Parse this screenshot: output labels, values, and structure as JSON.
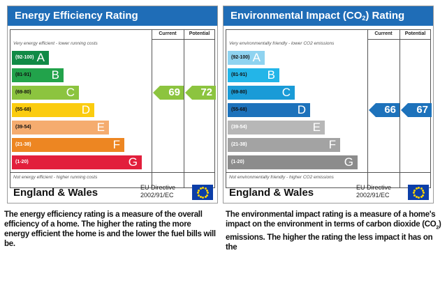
{
  "energy": {
    "title": "Energy Efficiency Rating",
    "col_current": "Current",
    "col_potential": "Potential",
    "top_note": "Very energy efficient - lower running costs",
    "bottom_note": "Not energy efficient - higher running costs",
    "bands": [
      {
        "range": "(92-100)",
        "letter": "A",
        "color": "#118a46",
        "width": 0.27
      },
      {
        "range": "(81-91)",
        "letter": "B",
        "color": "#22a34b",
        "width": 0.38
      },
      {
        "range": "(69-80)",
        "letter": "C",
        "color": "#8cc43f",
        "width": 0.49
      },
      {
        "range": "(55-68)",
        "letter": "D",
        "color": "#fbcc0f",
        "width": 0.6
      },
      {
        "range": "(39-54)",
        "letter": "E",
        "color": "#f5ac6f",
        "width": 0.71
      },
      {
        "range": "(21-38)",
        "letter": "F",
        "color": "#ed8622",
        "width": 0.82
      },
      {
        "range": "(1-20)",
        "letter": "G",
        "color": "#e21f3c",
        "width": 0.95
      }
    ],
    "current": {
      "value": "69",
      "band": 2,
      "color": "#8cc43f"
    },
    "potential": {
      "value": "72",
      "band": 2,
      "color": "#8cc43f"
    },
    "footer": "England & Wales",
    "directive_line1": "EU Directive",
    "directive_line2": "2002/91/EC"
  },
  "environment": {
    "title_pre": "Environmental Impact (CO",
    "title_sub": "2",
    "title_post": ") Rating",
    "col_current": "Current",
    "col_potential": "Potential",
    "top_note": "Very environmentally friendly - lower CO2 emissions",
    "bottom_note": "Not environmentally friendly - higher CO2 emissions",
    "bands": [
      {
        "range": "(92-100)",
        "letter": "A",
        "color": "#8fd3f0",
        "width": 0.27
      },
      {
        "range": "(81-91)",
        "letter": "B",
        "color": "#23b5e8",
        "width": 0.38
      },
      {
        "range": "(69-80)",
        "letter": "C",
        "color": "#1a9bd7",
        "width": 0.49
      },
      {
        "range": "(55-68)",
        "letter": "D",
        "color": "#1d72bb",
        "width": 0.6
      },
      {
        "range": "(39-54)",
        "letter": "E",
        "color": "#b7b7b7",
        "width": 0.71
      },
      {
        "range": "(21-38)",
        "letter": "F",
        "color": "#a3a3a3",
        "width": 0.82
      },
      {
        "range": "(1-20)",
        "letter": "G",
        "color": "#8c8c8c",
        "width": 0.95
      }
    ],
    "current": {
      "value": "66",
      "band": 3,
      "color": "#1d72bb"
    },
    "potential": {
      "value": "67",
      "band": 3,
      "color": "#1d72bb"
    },
    "footer": "England & Wales",
    "directive_line1": "EU Directive",
    "directive_line2": "2002/91/EC"
  },
  "desc_energy": "The energy efficiency rating is a measure of the overall efficiency of a home. The higher the rating the more energy efficient the home is and the lower the fuel bills will be.",
  "desc_env_pre": "The environmental impact rating is a measure of a home's impact on the environment in terms of carbon dioxide (CO",
  "desc_env_sub": "2",
  "desc_env_post": ") emissions. The higher the rating the less impact it has on the"
}
